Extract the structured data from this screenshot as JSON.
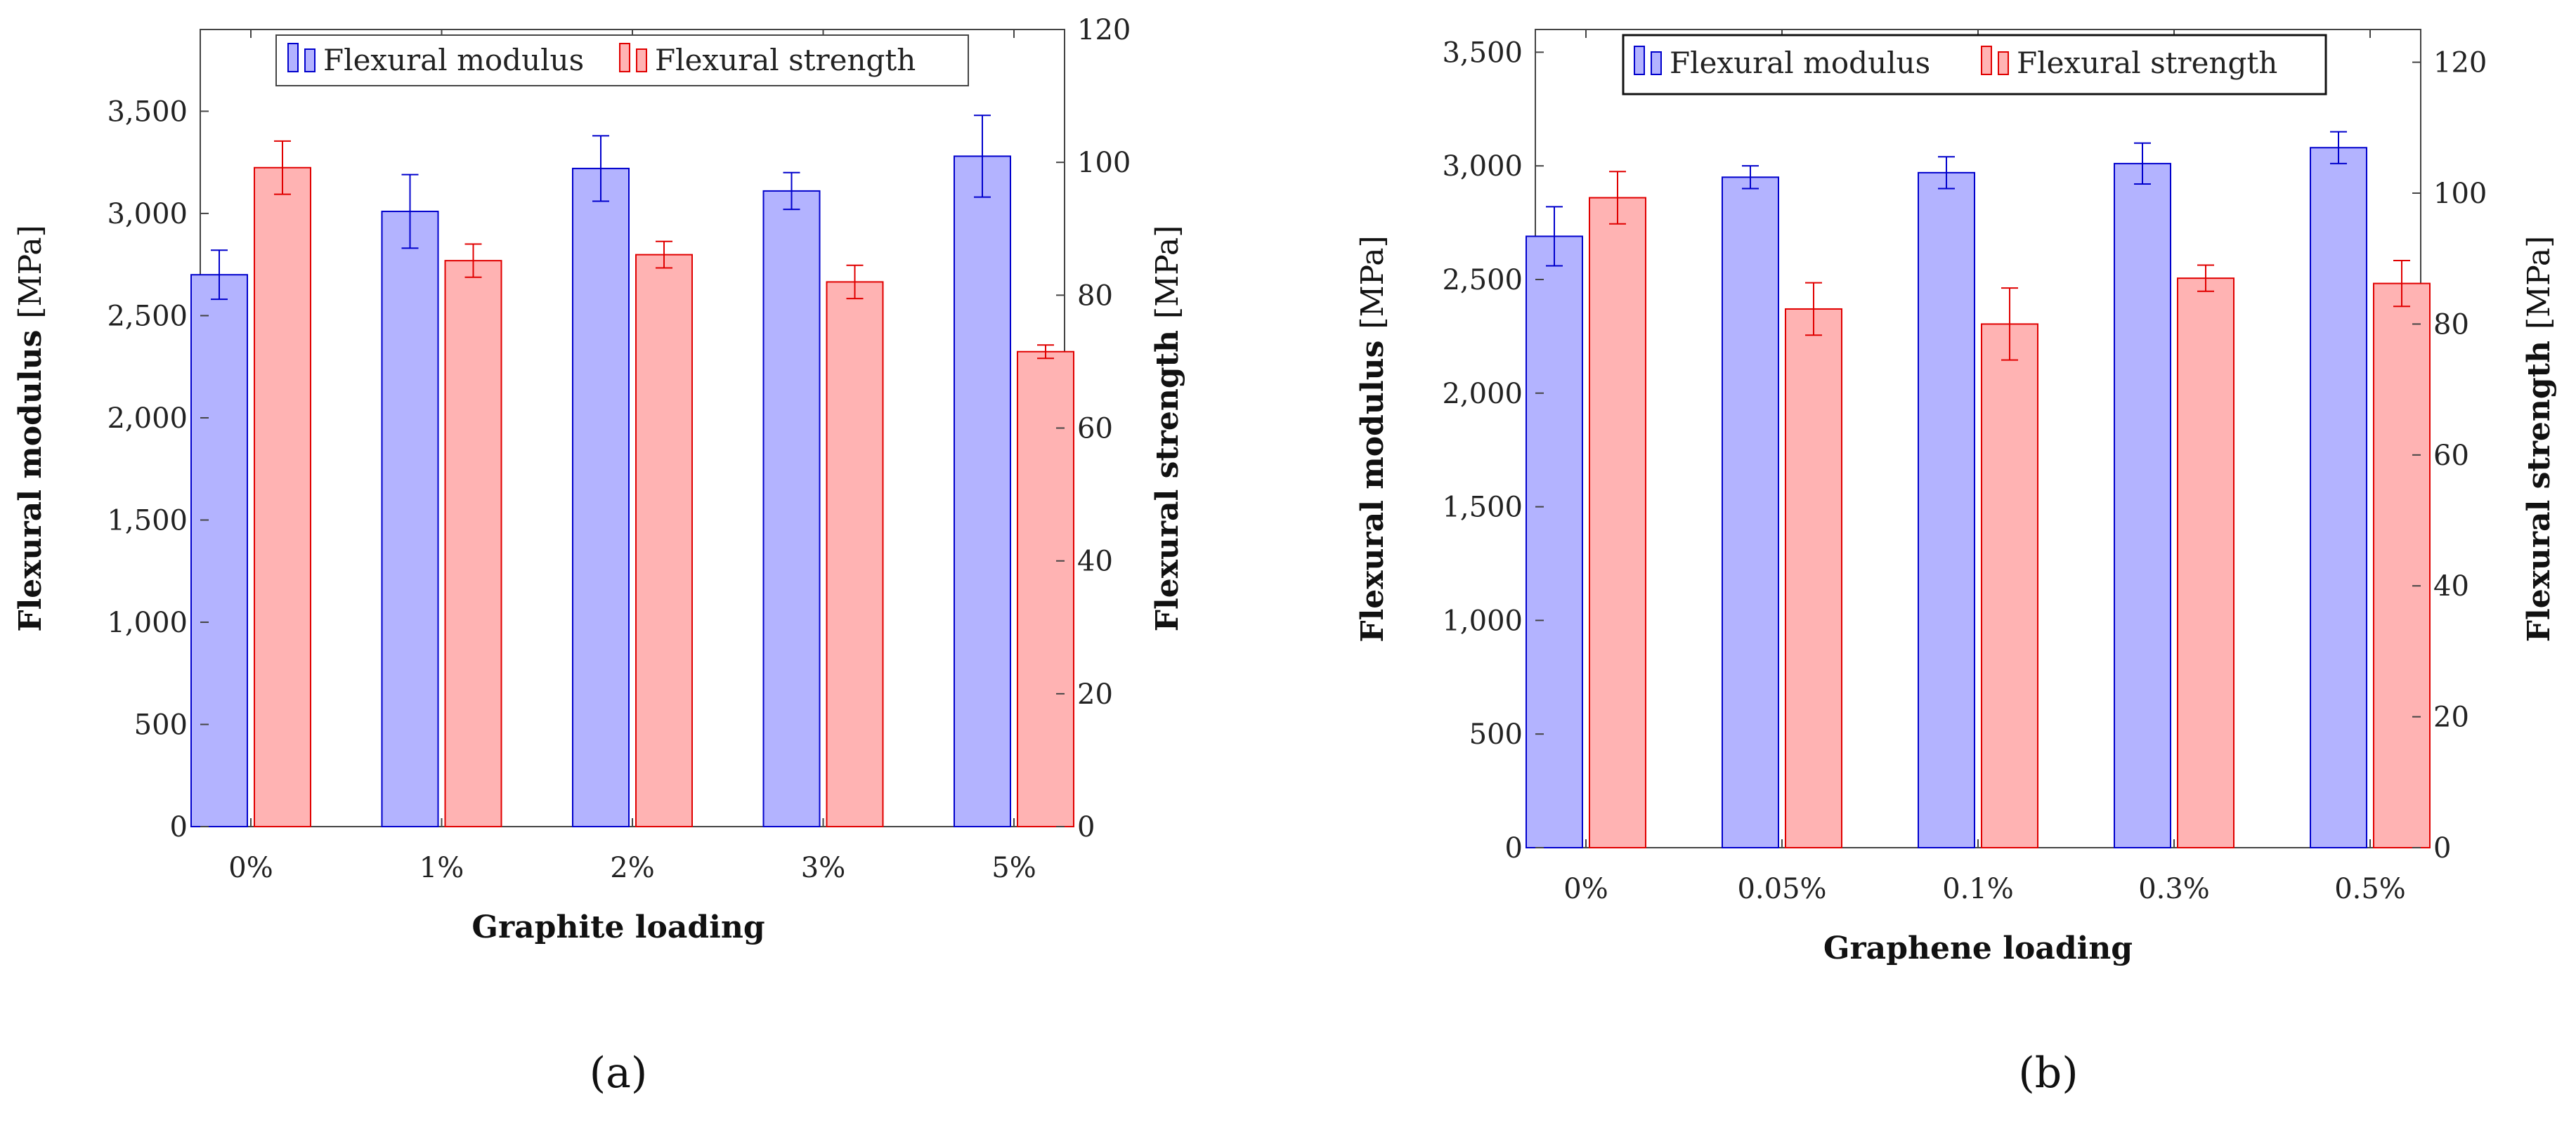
{
  "colors": {
    "modulus_fill": "#b3b3ff",
    "modulus_stroke": "#0000cc",
    "strength_fill": "#ffb3b3",
    "strength_stroke": "#e00000"
  },
  "chart_data": [
    {
      "type": "bar",
      "panel_label": "(a)",
      "xlabel": "Graphite loading",
      "categories": [
        "0%",
        "1%",
        "2%",
        "3%",
        "5%"
      ],
      "left_axis": {
        "label": "Flexural modulus",
        "unit": "[MPa]",
        "ylim": [
          0,
          3900
        ],
        "ticks": [
          0,
          500,
          1000,
          1500,
          2000,
          2500,
          3000,
          3500
        ]
      },
      "right_axis": {
        "label": "Flexural strength",
        "unit": "[MPa]",
        "ylim": [
          0,
          120
        ],
        "ticks": [
          0,
          20,
          40,
          60,
          80,
          100,
          120
        ]
      },
      "series": [
        {
          "name": "Flexural modulus",
          "axis": "left",
          "values": [
            2700,
            3010,
            3220,
            3110,
            3280
          ],
          "errors": [
            120,
            180,
            160,
            90,
            200
          ]
        },
        {
          "name": "Flexural strength",
          "axis": "right",
          "values": [
            99.2,
            85.2,
            86.1,
            82.0,
            71.5
          ],
          "errors": [
            4.0,
            2.5,
            2.0,
            2.5,
            1.0
          ]
        }
      ],
      "legend": "top-center",
      "grid": false
    },
    {
      "type": "bar",
      "panel_label": "(b)",
      "xlabel": "Graphene loading",
      "categories": [
        "0%",
        "0.05%",
        "0.1%",
        "0.3%",
        "0.5%"
      ],
      "left_axis": {
        "label": "Flexural modulus",
        "unit": "[MPa]",
        "ylim": [
          0,
          3600
        ],
        "ticks": [
          0,
          500,
          1000,
          1500,
          2000,
          2500,
          3000,
          3500
        ]
      },
      "right_axis": {
        "label": "Flexural strength",
        "unit": "[MPa]",
        "ylim": [
          0,
          125
        ],
        "ticks": [
          0,
          20,
          40,
          60,
          80,
          100,
          120
        ]
      },
      "series": [
        {
          "name": "Flexural modulus",
          "axis": "left",
          "values": [
            2690,
            2950,
            2970,
            3010,
            3080
          ],
          "errors": [
            130,
            50,
            70,
            90,
            70
          ]
        },
        {
          "name": "Flexural strength",
          "axis": "right",
          "values": [
            99.3,
            82.3,
            80.0,
            87.0,
            86.2
          ],
          "errors": [
            4.0,
            4.0,
            5.5,
            2.0,
            3.5
          ]
        }
      ],
      "legend": "top-center",
      "grid": false
    }
  ]
}
